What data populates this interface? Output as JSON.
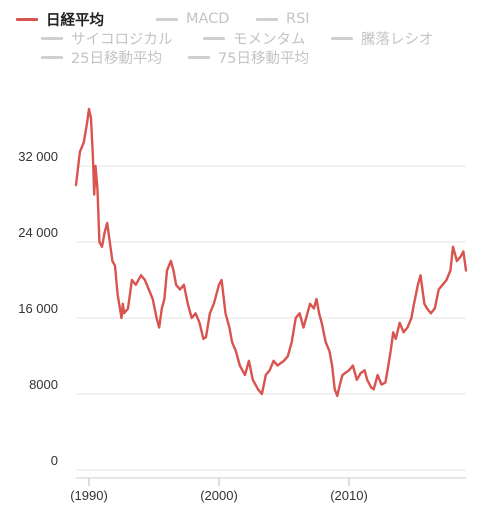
{
  "legend": [
    {
      "label": "日経平均",
      "active": true
    },
    {
      "label": "MACD",
      "active": false
    },
    {
      "label": "RSI",
      "active": false
    },
    {
      "label": "サイコロジカル",
      "active": false
    },
    {
      "label": "モメンタム",
      "active": false
    },
    {
      "label": "騰落レシオ",
      "active": false
    },
    {
      "label": "25日移動平均",
      "active": false
    },
    {
      "label": "75日移動平均",
      "active": false
    }
  ],
  "colors": {
    "series": "#d9534f",
    "grid": "#e6e6e6",
    "inactive": "#d0d0d0"
  },
  "chart_data": {
    "type": "line",
    "title": "",
    "xlabel": "",
    "ylabel": "",
    "ylim": [
      0,
      40000
    ],
    "xlim": [
      1989.0,
      2019.0
    ],
    "y_ticks": [
      {
        "value": 0,
        "label": "0"
      },
      {
        "value": 8000,
        "label": "8000"
      },
      {
        "value": 16000,
        "label": "16 000"
      },
      {
        "value": 24000,
        "label": "24 000"
      },
      {
        "value": 32000,
        "label": "32 000"
      }
    ],
    "x_ticks": [
      {
        "value": 1990,
        "label": "(1990)"
      },
      {
        "value": 2000,
        "label": "(2000)"
      },
      {
        "value": 2010,
        "label": "(2010)"
      }
    ],
    "grid": true,
    "legend_position": "top-left",
    "series": [
      {
        "name": "日経平均",
        "x": [
          1989.0,
          1989.3,
          1989.6,
          1989.85,
          1990.0,
          1990.15,
          1990.3,
          1990.4,
          1990.5,
          1990.65,
          1990.8,
          1991.0,
          1991.2,
          1991.4,
          1991.6,
          1991.8,
          1992.0,
          1992.2,
          1992.5,
          1992.6,
          1992.7,
          1993.0,
          1993.3,
          1993.6,
          1994.0,
          1994.3,
          1994.6,
          1994.9,
          1995.2,
          1995.4,
          1995.6,
          1995.8,
          1996.0,
          1996.3,
          1996.5,
          1996.7,
          1997.0,
          1997.3,
          1997.6,
          1997.9,
          1998.2,
          1998.5,
          1998.8,
          1999.0,
          1999.3,
          1999.6,
          1999.8,
          2000.0,
          2000.2,
          2000.5,
          2000.8,
          2001.0,
          2001.3,
          2001.6,
          2001.8,
          2002.0,
          2002.3,
          2002.6,
          2002.8,
          2003.0,
          2003.3,
          2003.6,
          2003.9,
          2004.2,
          2004.5,
          2004.8,
          2005.0,
          2005.3,
          2005.6,
          2005.9,
          2006.2,
          2006.5,
          2006.8,
          2007.0,
          2007.3,
          2007.5,
          2007.7,
          2007.9,
          2008.2,
          2008.5,
          2008.7,
          2008.9,
          2009.1,
          2009.3,
          2009.5,
          2009.8,
          2010.0,
          2010.3,
          2010.6,
          2010.9,
          2011.2,
          2011.4,
          2011.7,
          2011.9,
          2012.2,
          2012.5,
          2012.8,
          2013.0,
          2013.2,
          2013.4,
          2013.6,
          2013.9,
          2014.2,
          2014.5,
          2014.8,
          2015.0,
          2015.3,
          2015.5,
          2015.8,
          2016.0,
          2016.3,
          2016.6,
          2016.9,
          2017.2,
          2017.5,
          2017.8,
          2018.0,
          2018.3,
          2018.6,
          2018.8,
          2019.0
        ],
        "values": [
          30000,
          33500,
          34500,
          36500,
          38000,
          37000,
          33000,
          29000,
          32000,
          29500,
          24000,
          23500,
          25000,
          26000,
          24000,
          22000,
          21500,
          18500,
          16000,
          17500,
          16500,
          17000,
          20000,
          19500,
          20500,
          20000,
          19000,
          18000,
          16000,
          15000,
          17000,
          18000,
          21000,
          22000,
          21000,
          19500,
          19000,
          19500,
          17500,
          16000,
          16500,
          15500,
          13800,
          14000,
          16500,
          17500,
          18500,
          19500,
          20000,
          16500,
          15000,
          13500,
          12500,
          11000,
          10500,
          10000,
          11500,
          9500,
          9000,
          8500,
          8000,
          10000,
          10500,
          11500,
          11000,
          11300,
          11500,
          12000,
          13500,
          16000,
          16500,
          15000,
          16500,
          17500,
          17000,
          18000,
          16500,
          15500,
          13500,
          12500,
          11000,
          8500,
          7800,
          9000,
          10000,
          10300,
          10500,
          11000,
          9500,
          10200,
          10500,
          9500,
          8700,
          8500,
          10000,
          9000,
          9200,
          10800,
          12500,
          14500,
          13800,
          15500,
          14500,
          15000,
          16000,
          17500,
          19500,
          20500,
          17500,
          17000,
          16500,
          17000,
          19000,
          19500,
          20000,
          21000,
          23500,
          22000,
          22500,
          23000,
          21000
        ]
      }
    ]
  }
}
